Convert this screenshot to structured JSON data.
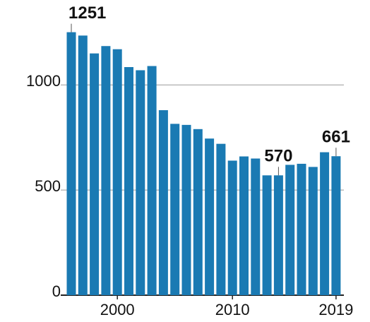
{
  "chart_data": {
    "type": "bar",
    "categories": [
      null,
      null,
      null,
      null,
      "2000",
      null,
      null,
      null,
      null,
      null,
      null,
      null,
      null,
      null,
      "2010",
      null,
      null,
      null,
      null,
      null,
      null,
      null,
      null,
      "2019"
    ],
    "values": [
      1251,
      1235,
      1150,
      1185,
      1170,
      1085,
      1070,
      1090,
      880,
      815,
      810,
      790,
      745,
      720,
      640,
      660,
      650,
      570,
      570,
      620,
      625,
      610,
      680,
      661
    ],
    "color": "#1a7ab3",
    "ylim": [
      0,
      1300
    ],
    "yticks": [
      0,
      500,
      1000
    ],
    "grid": true,
    "labeled_indices": [
      0,
      18,
      23
    ]
  }
}
